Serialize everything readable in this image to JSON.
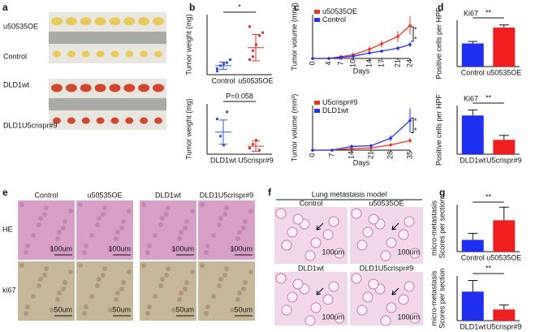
{
  "panel_labels": [
    "a",
    "b",
    "c",
    "d",
    "e",
    "f",
    "g"
  ],
  "a": {
    "labels": [
      "u50535OE",
      "Control",
      "DLD1wt",
      "DLD1U5crispr#9"
    ]
  },
  "e": {
    "columns": [
      "Control",
      "u50535OE",
      "DLD1wt",
      "DLD1U5crispr#9"
    ],
    "rows": [
      "HE",
      "ki67"
    ],
    "scale_bars": [
      "100um",
      "100um",
      "100um",
      "100um",
      "50um",
      "50um",
      "50um",
      "50um"
    ]
  },
  "f": {
    "title": "Lung metastasis model",
    "columns": [
      "Control",
      "u50535OE",
      "DLD1wt",
      "DLD1U5crispr#9"
    ],
    "scale_bars": [
      "100um",
      "100um",
      "100um",
      "100um"
    ]
  },
  "chart_data": [
    {
      "type": "dot",
      "ylabel": "Tumor weight (mg)",
      "categories": [
        "Control",
        "u50535OE"
      ],
      "colors": [
        "#3355cc",
        "#dd3333"
      ],
      "points": [
        [
          100,
          150,
          180,
          200,
          250,
          60
        ],
        [
          250,
          400,
          500,
          650,
          700,
          800,
          300
        ]
      ],
      "values": [
        150,
        450
      ],
      "errors": [
        60,
        220
      ],
      "ylim": [
        0,
        1000
      ],
      "significance": "*"
    },
    {
      "type": "dot",
      "ylabel": "Tumor weight (mg)",
      "categories": [
        "DLD1wt",
        "U5crispr#9"
      ],
      "colors": [
        "#3355cc",
        "#dd3333"
      ],
      "points": [
        [
          350,
          180,
          90,
          420
        ],
        [
          60,
          100,
          140,
          40
        ]
      ],
      "values": [
        220,
        80
      ],
      "errors": [
        120,
        50
      ],
      "ylim": [
        0,
        500
      ],
      "significance": "P=0.058"
    },
    {
      "type": "line",
      "ylabel": "Tumor volume (mm³)",
      "xlabel": "Days",
      "x": [
        0,
        4,
        7,
        10,
        14,
        17,
        21,
        24
      ],
      "xlim": [
        0,
        24
      ],
      "xticks": [
        0,
        4,
        7,
        10,
        14,
        17,
        21,
        24
      ],
      "ylim": [
        0,
        1200
      ],
      "series": [
        {
          "name": "u50535OE",
          "color": "#ee3322",
          "values": [
            0,
            0,
            50,
            100,
            250,
            400,
            600,
            900
          ],
          "errors": [
            0,
            0,
            20,
            40,
            80,
            100,
            150,
            250
          ]
        },
        {
          "name": "Control",
          "color": "#2233ee",
          "values": [
            0,
            0,
            30,
            60,
            150,
            200,
            280,
            380
          ],
          "errors": [
            0,
            0,
            10,
            20,
            30,
            40,
            50,
            60
          ]
        }
      ],
      "annotations": [
        "*",
        "*"
      ]
    },
    {
      "type": "line",
      "ylabel": "Tumor volume (mm³)",
      "xlabel": "Days",
      "x": [
        0,
        7,
        14,
        21,
        28,
        35
      ],
      "xlim": [
        0,
        35
      ],
      "xticks": [
        0,
        7,
        14,
        21,
        28,
        35
      ],
      "ylim": [
        0,
        600
      ],
      "series": [
        {
          "name": "U5crispr#9",
          "color": "#ee3322",
          "values": [
            0,
            0,
            20,
            30,
            70,
            130
          ],
          "errors": [
            0,
            0,
            5,
            10,
            20,
            30
          ]
        },
        {
          "name": "DLD1wt",
          "color": "#2233ee",
          "values": [
            0,
            0,
            50,
            60,
            160,
            400
          ],
          "errors": [
            0,
            0,
            10,
            15,
            40,
            160
          ]
        }
      ],
      "annotations": [
        "*",
        "*"
      ]
    },
    {
      "type": "bar",
      "title": "Ki67",
      "ylabel": "Positive cells per HPF",
      "categories": [
        "Control",
        "u50535OE"
      ],
      "colors": [
        "#1f2ff0",
        "#f01f1f"
      ],
      "values": [
        1750,
        2950
      ],
      "errors": [
        150,
        200
      ],
      "ylim": [
        0,
        3500
      ],
      "significance": "**"
    },
    {
      "type": "bar",
      "title": "Ki67",
      "ylabel": "Positive cells per HPF",
      "categories": [
        "DLD1wt",
        "U5crispr#9"
      ],
      "colors": [
        "#1f2ff0",
        "#f01f1f"
      ],
      "values": [
        1750,
        650
      ],
      "errors": [
        250,
        200
      ],
      "ylim": [
        0,
        2200
      ],
      "significance": "**"
    },
    {
      "type": "bar",
      "ylabel_lines": [
        "micro-metastasis",
        "Scores per section"
      ],
      "categories": [
        "Control",
        "u50535OE"
      ],
      "colors": [
        "#1f2ff0",
        "#f01f1f"
      ],
      "values": [
        4.5,
        12
      ],
      "errors": [
        2.5,
        5
      ],
      "ylim": [
        0,
        18
      ],
      "significance": "**"
    },
    {
      "type": "bar",
      "ylabel_lines": [
        "micro-metastasis",
        "Scores per section"
      ],
      "categories": [
        "DLD1wt",
        "U5crispr#9"
      ],
      "colors": [
        "#1f2ff0",
        "#f01f1f"
      ],
      "values": [
        6.5,
        2.5
      ],
      "errors": [
        2.5,
        1
      ],
      "ylim": [
        0,
        10
      ],
      "significance": "**"
    }
  ]
}
